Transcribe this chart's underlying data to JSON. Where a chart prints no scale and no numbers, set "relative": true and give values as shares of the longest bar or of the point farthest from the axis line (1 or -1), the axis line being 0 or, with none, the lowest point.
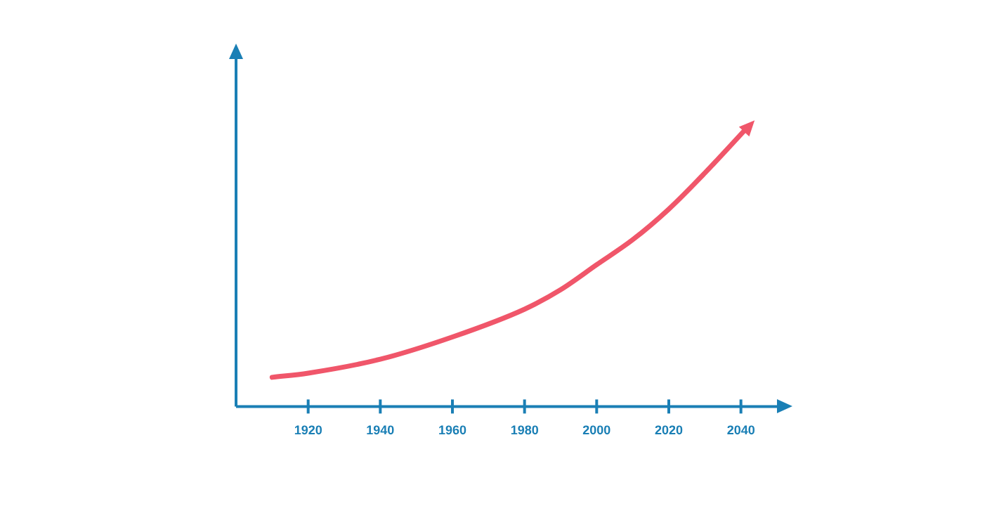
{
  "chart_data": {
    "type": "line",
    "relative": true,
    "x": [
      1910,
      1920,
      1940,
      1960,
      1980,
      1990,
      2000,
      2010,
      2020,
      2030,
      2041.5
    ],
    "series": [
      {
        "color": "#f0566a",
        "values": [
          0.105,
          0.12,
          0.17,
          0.25,
          0.35,
          0.42,
          0.51,
          0.6,
          0.71,
          0.84,
          1
        ]
      }
    ],
    "xlim": [
      1900,
      2050
    ],
    "xticks": [
      1920,
      1940,
      1960,
      1980,
      2000,
      2020,
      2040
    ],
    "grid": false,
    "legend": false,
    "marker": "none",
    "line_style": "solid"
  }
}
